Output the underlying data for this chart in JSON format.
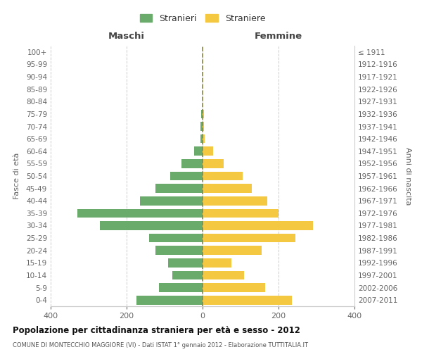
{
  "age_groups": [
    "100+",
    "95-99",
    "90-94",
    "85-89",
    "80-84",
    "75-79",
    "70-74",
    "65-69",
    "60-64",
    "55-59",
    "50-54",
    "45-49",
    "40-44",
    "35-39",
    "30-34",
    "25-29",
    "20-24",
    "15-19",
    "10-14",
    "5-9",
    "0-4"
  ],
  "birth_years": [
    "≤ 1911",
    "1912-1916",
    "1917-1921",
    "1922-1926",
    "1927-1931",
    "1932-1936",
    "1937-1941",
    "1942-1946",
    "1947-1951",
    "1952-1956",
    "1957-1961",
    "1962-1966",
    "1967-1971",
    "1972-1976",
    "1977-1981",
    "1982-1986",
    "1987-1991",
    "1992-1996",
    "1997-2001",
    "2002-2006",
    "2007-2011"
  ],
  "maschi": [
    0,
    0,
    0,
    0,
    0,
    4,
    5,
    6,
    22,
    55,
    85,
    125,
    165,
    330,
    270,
    140,
    125,
    90,
    80,
    115,
    175
  ],
  "femmine": [
    0,
    0,
    0,
    0,
    0,
    3,
    4,
    5,
    28,
    55,
    105,
    130,
    170,
    200,
    290,
    245,
    155,
    75,
    110,
    165,
    235
  ],
  "color_maschi": "#6aaa6a",
  "color_femmine": "#f5c842",
  "title": "Popolazione per cittadinanza straniera per età e sesso - 2012",
  "subtitle": "COMUNE DI MONTECCHIO MAGGIORE (VI) - Dati ISTAT 1° gennaio 2012 - Elaborazione TUTTITALIA.IT",
  "header_left": "Maschi",
  "header_right": "Femmine",
  "ylabel_left": "Fasce di età",
  "ylabel_right": "Anni di nascita",
  "legend_maschi": "Stranieri",
  "legend_femmine": "Straniere",
  "xlim": 400,
  "background_color": "#ffffff",
  "grid_color": "#cccccc"
}
